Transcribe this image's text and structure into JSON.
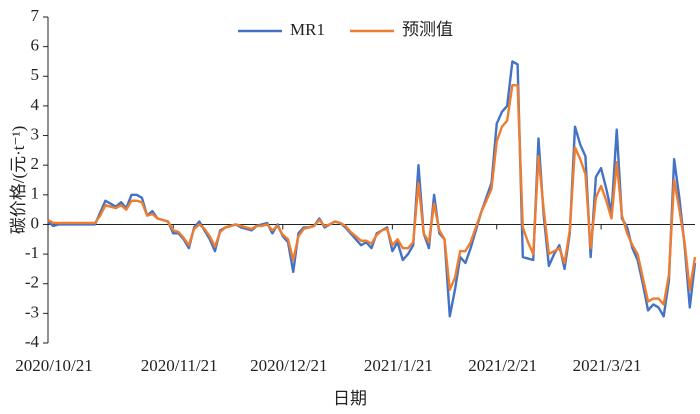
{
  "chart_data": {
    "type": "line",
    "y_label": "碳价格/(元·t⁻¹)",
    "x_label": "日期",
    "categories": [
      "2020/10/21",
      null,
      null,
      null,
      null,
      null,
      null,
      null,
      null,
      null,
      null,
      null,
      null,
      null,
      null,
      null,
      null,
      null,
      null,
      null,
      null,
      null,
      null,
      null,
      "2020/11/21",
      null,
      null,
      null,
      null,
      null,
      null,
      null,
      null,
      null,
      null,
      null,
      null,
      null,
      null,
      null,
      null,
      null,
      null,
      null,
      null,
      "2020/12/21",
      null,
      null,
      null,
      null,
      null,
      null,
      null,
      null,
      null,
      null,
      null,
      null,
      null,
      null,
      null,
      null,
      null,
      null,
      null,
      null,
      "2021/1/21",
      null,
      null,
      null,
      null,
      null,
      null,
      null,
      null,
      null,
      null,
      null,
      null,
      null,
      null,
      null,
      null,
      null,
      null,
      null,
      "2021/2/21",
      null,
      null,
      null,
      null,
      null,
      null,
      null,
      null,
      null,
      null,
      null,
      null,
      null,
      null,
      null,
      null,
      null,
      null,
      null,
      "2021/3/21",
      null,
      null,
      null,
      null,
      null,
      null,
      null,
      null,
      null,
      null,
      null,
      null,
      null,
      null,
      null,
      null,
      null,
      null
    ],
    "series": [
      {
        "name": "MR1",
        "color": "#4472c4",
        "values": [
          0.1,
          -0.05,
          0,
          0,
          0,
          0,
          0,
          0,
          0,
          0,
          0.4,
          0.8,
          0.7,
          0.6,
          0.75,
          0.55,
          1.0,
          1.0,
          0.9,
          0.3,
          0.45,
          0.2,
          0.15,
          0.1,
          -0.3,
          -0.3,
          -0.5,
          -0.8,
          -0.1,
          0.1,
          -0.2,
          -0.5,
          -0.9,
          -0.2,
          -0.1,
          -0.05,
          0,
          -0.1,
          -0.15,
          -0.2,
          -0.05,
          0,
          0.05,
          -0.3,
          0,
          -0.4,
          -0.6,
          -1.6,
          -0.3,
          -0.1,
          -0.1,
          -0.05,
          0.2,
          -0.1,
          0,
          0.1,
          0.05,
          -0.1,
          -0.3,
          -0.5,
          -0.7,
          -0.6,
          -0.8,
          -0.3,
          -0.2,
          -0.1,
          -0.9,
          -0.6,
          -1.2,
          -1.0,
          -0.7,
          2.0,
          -0.3,
          -0.8,
          1.0,
          -0.3,
          -0.5,
          -3.1,
          -2.2,
          -1.1,
          -1.3,
          -0.8,
          -0.2,
          0.4,
          0.9,
          1.4,
          3.4,
          3.8,
          4.0,
          5.5,
          5.4,
          -1.1,
          -1.15,
          -1.2,
          2.9,
          0.3,
          -1.4,
          -1.0,
          -0.7,
          -1.5,
          -0.3,
          3.3,
          2.7,
          2.3,
          -1.1,
          1.6,
          1.9,
          1.2,
          0.4,
          3.2,
          0.2,
          -0.1,
          -0.8,
          -1.2,
          -2.0,
          -2.9,
          -2.7,
          -2.8,
          -3.1,
          -1.9,
          2.2,
          0.9,
          -0.7,
          -2.8,
          -1.3
        ]
      },
      {
        "name": "预测值",
        "color": "#ed7d31",
        "values": [
          0.15,
          0.05,
          0.05,
          0.05,
          0.05,
          0.05,
          0.05,
          0.05,
          0.05,
          0.05,
          0.3,
          0.65,
          0.6,
          0.55,
          0.65,
          0.5,
          0.8,
          0.8,
          0.75,
          0.3,
          0.35,
          0.2,
          0.15,
          0.1,
          -0.2,
          -0.25,
          -0.45,
          -0.7,
          -0.15,
          0,
          -0.15,
          -0.4,
          -0.75,
          -0.25,
          -0.1,
          -0.05,
          0,
          -0.05,
          -0.1,
          -0.15,
          -0.05,
          -0.05,
          0,
          -0.2,
          -0.05,
          -0.35,
          -0.5,
          -1.2,
          -0.4,
          -0.15,
          -0.1,
          -0.05,
          0.15,
          -0.05,
          0,
          0.1,
          0.05,
          -0.05,
          -0.25,
          -0.4,
          -0.55,
          -0.55,
          -0.65,
          -0.35,
          -0.2,
          -0.15,
          -0.7,
          -0.5,
          -0.8,
          -0.8,
          -0.6,
          1.4,
          -0.3,
          -0.6,
          0.7,
          -0.2,
          -0.5,
          -2.2,
          -1.8,
          -0.9,
          -0.9,
          -0.6,
          -0.1,
          0.4,
          0.8,
          1.2,
          2.8,
          3.3,
          3.5,
          4.7,
          4.7,
          -0.1,
          -0.6,
          -1.0,
          2.3,
          0.5,
          -1.0,
          -0.9,
          -0.8,
          -1.3,
          -0.2,
          2.6,
          2.2,
          1.7,
          -0.8,
          0.9,
          1.3,
          0.8,
          0.2,
          2.1,
          0.3,
          -0.3,
          -0.7,
          -1.0,
          -1.8,
          -2.6,
          -2.5,
          -2.5,
          -2.7,
          -1.7,
          1.5,
          0.5,
          -0.6,
          -2.2,
          -1.1
        ]
      }
    ],
    "ylim": [
      -4,
      7
    ],
    "yticks": [
      -4,
      -3,
      -2,
      -1,
      0,
      1,
      2,
      3,
      4,
      5,
      6,
      7
    ],
    "legend": "top"
  }
}
